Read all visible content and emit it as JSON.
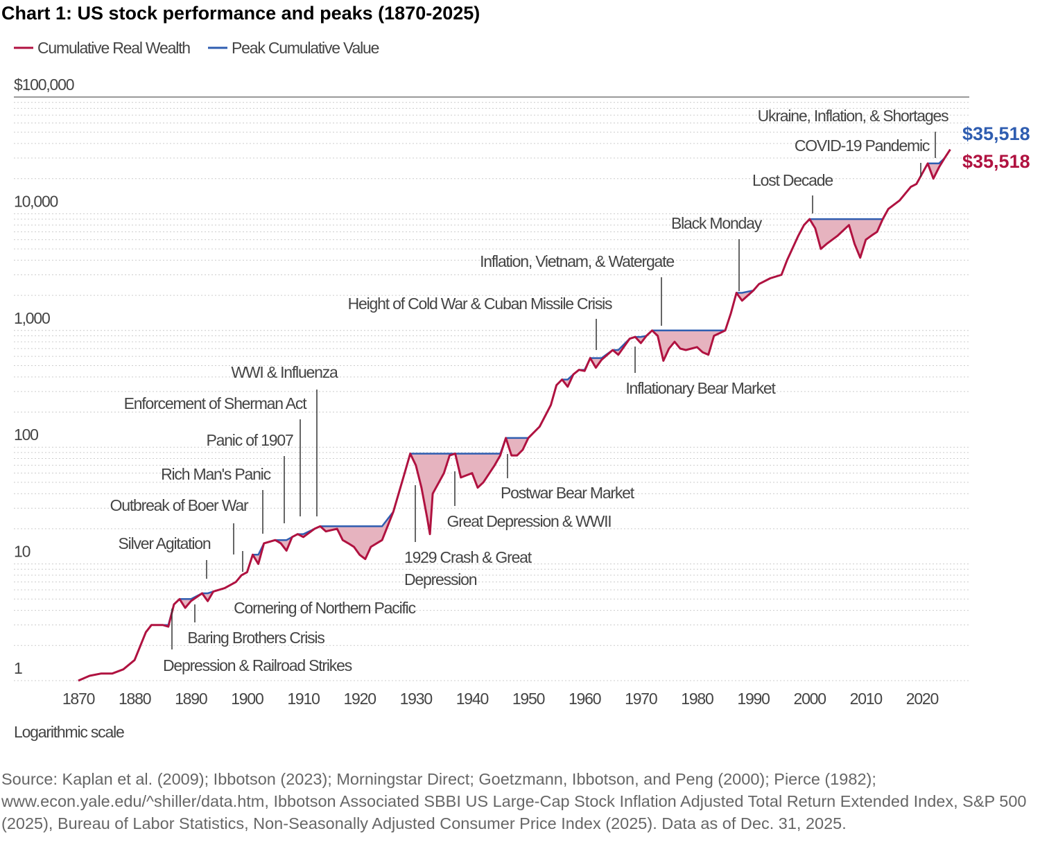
{
  "title": "Chart 1: US stock performance and peaks (1870-2025)",
  "source": "Source: Kaplan et al. (2009); Ibbotson (2023); Morningstar Direct; Goetzmann, Ibbotson, and Peng (2000); Pierce (1982); www.econ.yale.edu/^shiller/data.htm, Ibbotson Associated SBBI US Large-Cap Stock Inflation Adjusted Total Return Extended Index, S&P 500 (2025), Bureau of Labor Statistics, Non-Seasonally Adjusted Consumer Price Index (2025). Data as of Dec. 31, 2025.",
  "colors": {
    "wealth": "#b01240",
    "peak": "#2f5db0",
    "drawdown_fill": "#e6b3bf",
    "grid": "#cccccc"
  },
  "chart_data": {
    "type": "line",
    "yscale": "log",
    "ylim": [
      1,
      100000
    ],
    "xlim": [
      1870,
      2025
    ],
    "yticks": [
      1,
      10,
      100,
      1000,
      10000,
      100000
    ],
    "ytick_labels": [
      "1",
      "10",
      "100",
      "1,000",
      "10,000",
      "$100,000"
    ],
    "xticks": [
      1870,
      1880,
      1890,
      1900,
      1910,
      1920,
      1930,
      1940,
      1950,
      1960,
      1970,
      1980,
      1990,
      2000,
      2010,
      2020
    ],
    "xtick_labels": [
      "1870",
      "1880",
      "1890",
      "1900",
      "1910",
      "1920",
      "1930",
      "1940",
      "1950",
      "1960",
      "1970",
      "1980",
      "1990",
      "2000",
      "2010",
      "2020"
    ],
    "scale_note": "Logarithmic scale",
    "grid": true,
    "legend": {
      "placement": "top-left",
      "entries": [
        "Cumulative Real Wealth",
        "Peak Cumulative Value"
      ]
    },
    "end_labels": {
      "peak": "$35,518",
      "wealth": "$35,518"
    },
    "series": [
      {
        "name": "Cumulative Real Wealth",
        "x": [
          1870,
          1872,
          1874,
          1876,
          1878,
          1880,
          1882,
          1883,
          1885,
          1886,
          1887,
          1888,
          1889,
          1890,
          1892,
          1893,
          1894,
          1896,
          1898,
          1899,
          1900,
          1901,
          1902,
          1903,
          1905,
          1906,
          1907,
          1908,
          1909,
          1910,
          1912,
          1913,
          1914,
          1916,
          1917,
          1918,
          1919,
          1920,
          1921,
          1922,
          1924,
          1926,
          1928,
          1929,
          1930,
          1931,
          1932,
          1932.5,
          1933,
          1935,
          1936,
          1937,
          1938,
          1940,
          1941,
          1942,
          1944,
          1945,
          1946,
          1947,
          1948,
          1949,
          1950,
          1952,
          1954,
          1955,
          1956,
          1957,
          1958,
          1959,
          1960,
          1961,
          1962,
          1963,
          1965,
          1966,
          1968,
          1969,
          1970,
          1971,
          1972,
          1973,
          1974,
          1975,
          1976,
          1977,
          1978,
          1980,
          1981,
          1982,
          1983,
          1985,
          1986,
          1987,
          1988,
          1990,
          1991,
          1993,
          1995,
          1996,
          1998,
          1999,
          2000,
          2001,
          2002,
          2003,
          2005,
          2007,
          2008,
          2009,
          2010,
          2011,
          2012,
          2013,
          2014,
          2016,
          2018,
          2019,
          2020,
          2021,
          2022,
          2023,
          2024,
          2025
        ],
        "values": [
          1.0,
          1.1,
          1.15,
          1.15,
          1.25,
          1.5,
          2.6,
          3.0,
          3.0,
          2.9,
          4.5,
          5.0,
          4.2,
          4.8,
          5.6,
          4.8,
          5.8,
          6.2,
          7.0,
          8.0,
          8.5,
          12,
          10,
          15,
          16,
          15,
          13,
          17,
          18,
          17,
          20,
          21,
          19,
          20,
          16,
          15,
          14,
          12,
          11,
          14,
          16,
          28,
          60,
          88,
          70,
          45,
          25,
          18,
          40,
          60,
          85,
          88,
          55,
          60,
          45,
          50,
          70,
          85,
          120,
          85,
          85,
          95,
          120,
          150,
          230,
          340,
          380,
          330,
          420,
          460,
          450,
          580,
          480,
          560,
          680,
          620,
          850,
          880,
          780,
          900,
          1000,
          900,
          550,
          700,
          800,
          700,
          680,
          720,
          650,
          620,
          900,
          1000,
          1400,
          2100,
          1800,
          2200,
          2500,
          2800,
          3000,
          4000,
          6500,
          8000,
          9000,
          7500,
          5000,
          5500,
          6500,
          8000,
          5500,
          4200,
          6000,
          6500,
          7000,
          9000,
          11000,
          13000,
          17000,
          18000,
          22000,
          27000,
          20000,
          25000,
          30000,
          35518
        ]
      },
      {
        "name": "Peak Cumulative Value",
        "derived_from": "running maximum of Cumulative Real Wealth"
      }
    ],
    "annotations": [
      {
        "text": "Ukraine, Inflation, & Shortages",
        "year": 2022
      },
      {
        "text": "COVID-19 Pandemic",
        "year": 2020
      },
      {
        "text": "Lost Decade",
        "year": 2000
      },
      {
        "text": "Black Monday",
        "year": 1987
      },
      {
        "text": "Inflation, Vietnam, & Watergate",
        "year": 1973
      },
      {
        "text": "Height of Cold War & Cuban Missile Crisis",
        "year": 1962
      },
      {
        "text": "Inflationary Bear Market",
        "year": 1968
      },
      {
        "text": "WWI & Influenza",
        "year": 1912
      },
      {
        "text": "Enforcement of Sherman Act",
        "year": 1911
      },
      {
        "text": "Panic of 1907",
        "year": 1907
      },
      {
        "text": "Rich Man's Panic",
        "year": 1903
      },
      {
        "text": "Outbreak of Boer War",
        "year": 1899
      },
      {
        "text": "Silver Agitation",
        "year": 1893
      },
      {
        "text": "Cornering of Northern Pacific",
        "year": 1901
      },
      {
        "text": "Baring Brothers Crisis",
        "year": 1890
      },
      {
        "text": "Depression & Railroad Strikes",
        "year": 1886
      },
      {
        "text": "1929 Crash & Great",
        "text2": "Depression",
        "year": 1929
      },
      {
        "text": "Great Depression & WWII",
        "year": 1937
      },
      {
        "text": "Postwar Bear Market",
        "year": 1946
      }
    ]
  }
}
